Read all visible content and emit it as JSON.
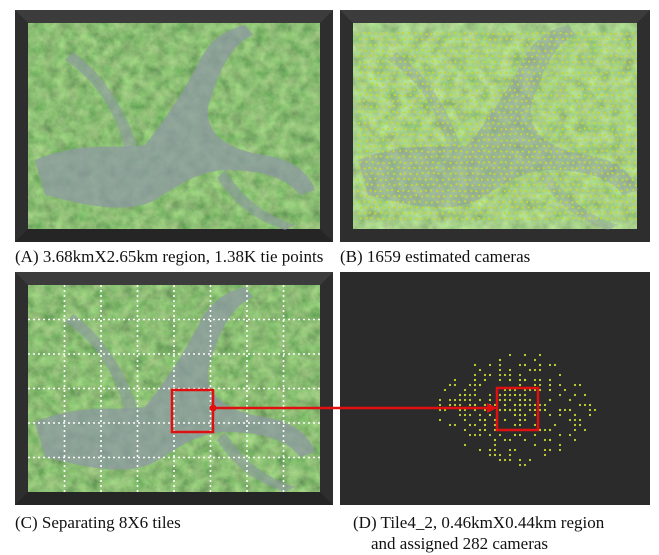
{
  "panels": [
    {
      "caption": "(A) 3.68kmX2.65km region, 1.38K tie points"
    },
    {
      "caption": "(B) 1659 estimated cameras"
    },
    {
      "caption": "(C) Separating 8X6 tiles"
    },
    {
      "caption_lines": [
        "(D) Tile4_2, 0.46kmX0.44km region",
        "and assigned 282 cameras"
      ]
    }
  ]
}
